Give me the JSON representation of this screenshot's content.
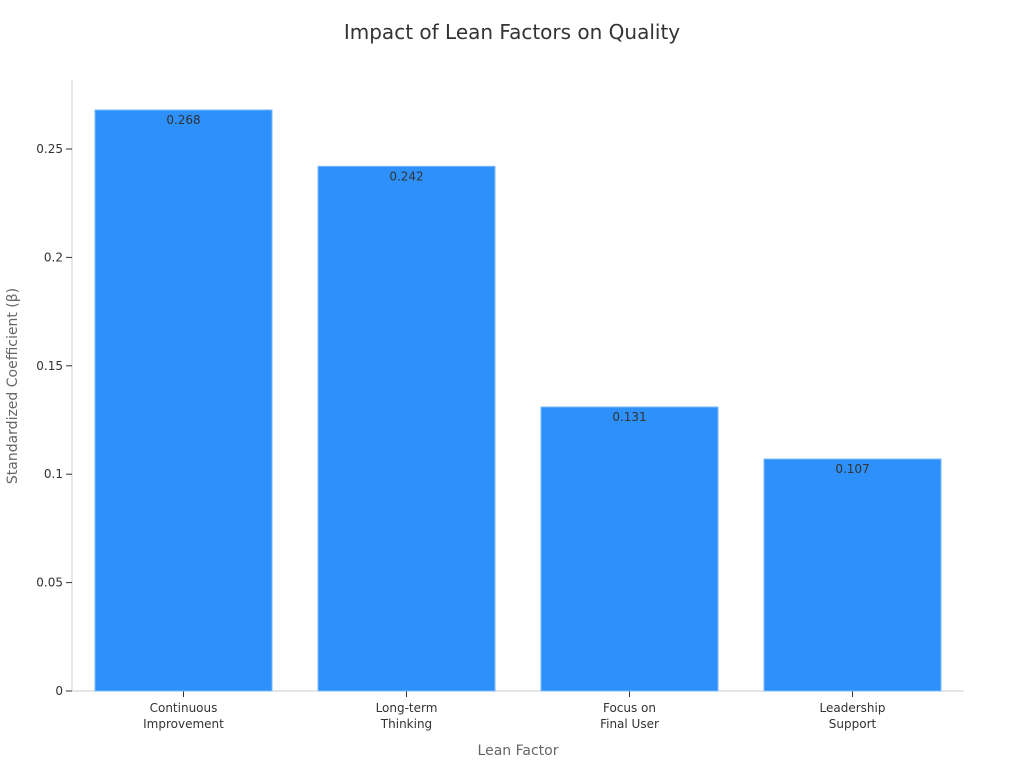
{
  "title": "Impact of Lean Factors on Quality",
  "colors": {
    "bar": "#2e90fa",
    "bar_edge": "#7cb9f9",
    "axis": "#cccccc",
    "text": "#333333"
  },
  "chart_data": {
    "type": "bar",
    "title": "Impact of Lean Factors on Quality",
    "xlabel": "Lean Factor",
    "ylabel": "Standardized Coefficient (β)",
    "categories": [
      [
        "Continuous",
        "Improvement"
      ],
      [
        "Long-term",
        "Thinking"
      ],
      [
        "Focus on",
        "Final User"
      ],
      [
        "Leadership",
        "Support"
      ]
    ],
    "category_names": [
      "Continuous Improvement",
      "Long-term Thinking",
      "Focus on Final User",
      "Leadership Support"
    ],
    "values": [
      0.268,
      0.242,
      0.131,
      0.107
    ],
    "value_labels": [
      "0.268",
      "0.242",
      "0.131",
      "0.107"
    ],
    "yticks": [
      0,
      0.05,
      0.1,
      0.15,
      0.2,
      0.25
    ],
    "ytick_labels": [
      "0",
      "0.05",
      "0.1",
      "0.15",
      "0.2",
      "0.25"
    ],
    "ylim": [
      0,
      0.2745
    ],
    "grid": false,
    "legend": null
  }
}
